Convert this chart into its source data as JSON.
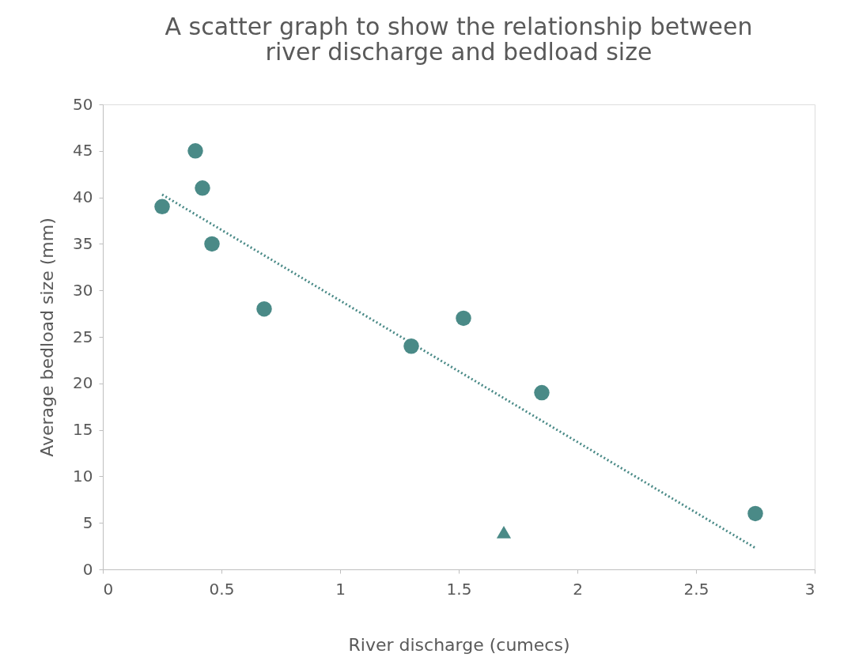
{
  "chart_data": {
    "type": "scatter",
    "title": "A scatter graph to show the relationship between\nriver discharge and bedload size",
    "xlabel": "River discharge (cumecs)",
    "ylabel": "Average bedload size (mm)",
    "xlim": [
      0,
      3
    ],
    "xticks": [
      {
        "value": 0,
        "label": "0"
      },
      0.5,
      {
        "value": 1,
        "label": "1"
      },
      1.5,
      {
        "value": 2,
        "label": "2"
      },
      2.5,
      {
        "value": 3,
        "label": "3"
      }
    ],
    "ylim": [
      0,
      50
    ],
    "yticks": [
      0,
      5,
      10,
      15,
      20,
      25,
      30,
      35,
      40,
      45,
      50
    ],
    "grid": false,
    "series": [
      {
        "marker": "circle",
        "color": "#4a8a87",
        "x": [
          0.39,
          0.42,
          0.25,
          0.46,
          0.68,
          1.3,
          1.52,
          1.85,
          2.75
        ],
        "values": [
          45,
          41,
          39,
          35,
          28,
          24,
          27,
          19,
          6
        ]
      },
      {
        "marker": "triangle",
        "color": "#4a8a87",
        "x": [
          1.69
        ],
        "values": [
          4
        ]
      },
      {
        "type": "line",
        "line_style": "dotted",
        "color": "#4a8a87",
        "x": [
          0.25,
          2.75
        ],
        "values": [
          40.3,
          2.3
        ]
      }
    ]
  }
}
